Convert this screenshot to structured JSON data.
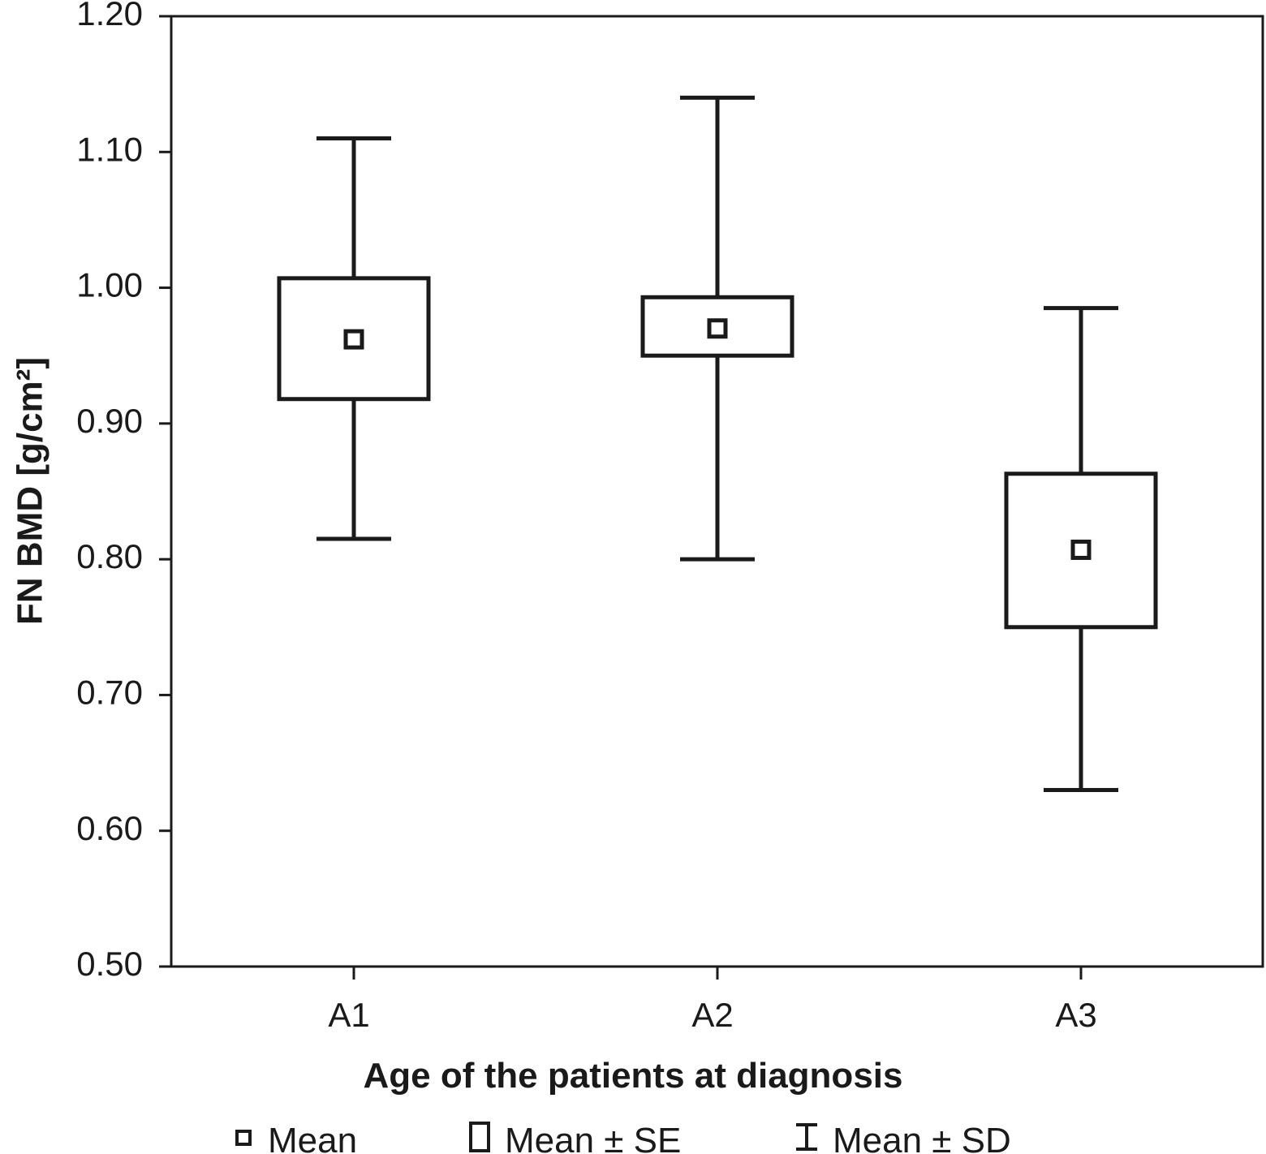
{
  "chart_data": {
    "type": "box",
    "categories": [
      "A1",
      "A2",
      "A3"
    ],
    "series": [
      {
        "name": "Mean",
        "values": [
          0.962,
          0.97,
          0.807
        ]
      },
      {
        "name": "Mean ± SE",
        "lower": [
          0.918,
          0.95,
          0.75
        ],
        "upper": [
          1.007,
          0.993,
          0.863
        ]
      },
      {
        "name": "Mean ± SD",
        "lower": [
          0.815,
          0.8,
          0.63
        ],
        "upper": [
          1.11,
          1.14,
          0.985
        ]
      }
    ],
    "xlabel": "Age of the patients at diagnosis",
    "ylabel": "FN BMD [g/cm²]",
    "ylim": [
      0.5,
      1.2
    ],
    "yticks": [
      "0.50",
      "0.60",
      "0.70",
      "0.80",
      "0.90",
      "1.00",
      "1.10",
      "1.20"
    ],
    "grid": false,
    "legend_position": "bottom"
  },
  "legend": {
    "mean": "Mean",
    "se": "Mean ± SE",
    "sd": "Mean ± SD"
  },
  "colors": {
    "ink": "#1a1a1a",
    "background": "#ffffff"
  }
}
